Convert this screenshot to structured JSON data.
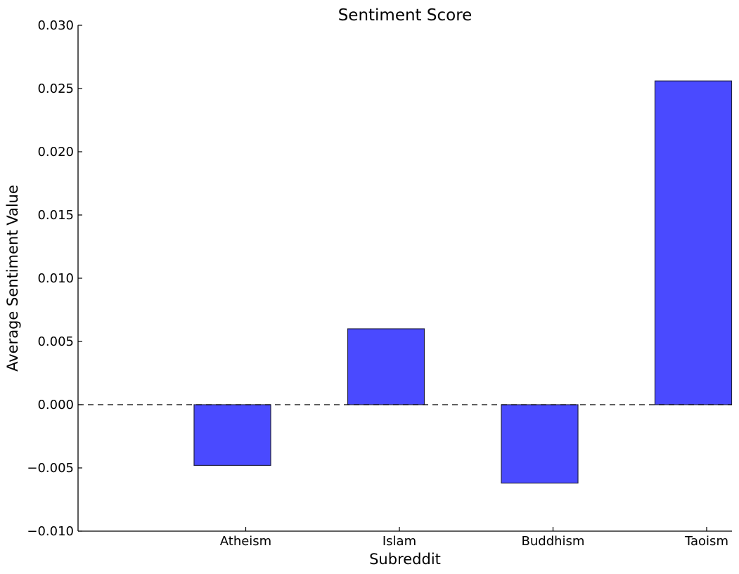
{
  "chart_data": {
    "type": "bar",
    "title": "Sentiment Score",
    "xlabel": "Subreddit",
    "ylabel": "Average Sentiment Value",
    "categories": [
      "Atheism",
      "Islam",
      "Buddhism",
      "Taoism"
    ],
    "values": [
      -0.0048,
      0.006,
      -0.0062,
      0.0256
    ],
    "ylim": [
      -0.01,
      0.03
    ],
    "yticks": [
      -0.01,
      -0.005,
      0.0,
      0.005,
      0.01,
      0.015,
      0.02,
      0.025,
      0.03
    ],
    "ytick_labels": [
      "−0.010",
      "−0.005",
      "0.000",
      "0.005",
      "0.010",
      "0.015",
      "0.020",
      "0.025",
      "0.030"
    ],
    "reference_line": {
      "y": 0,
      "style": "dashed"
    },
    "grid": false,
    "legend": "none",
    "colors": {
      "bar_fill": "#4a4aff",
      "bar_edge": "#222244",
      "axis": "#000000"
    }
  }
}
